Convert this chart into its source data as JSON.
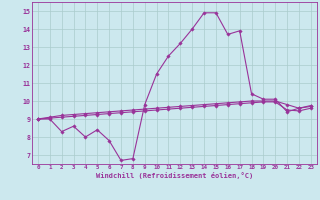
{
  "xlabel": "Windchill (Refroidissement éolien,°C)",
  "background_color": "#cce8ee",
  "grid_color": "#aacccc",
  "line_color": "#993399",
  "x_ticks": [
    0,
    1,
    2,
    3,
    4,
    5,
    6,
    7,
    8,
    9,
    10,
    11,
    12,
    13,
    14,
    15,
    16,
    17,
    18,
    19,
    20,
    21,
    22,
    23
  ],
  "ylim": [
    6.5,
    15.5
  ],
  "xlim": [
    -0.5,
    23.5
  ],
  "y_ticks": [
    7,
    8,
    9,
    10,
    11,
    12,
    13,
    14,
    15
  ],
  "line1_y": [
    9.0,
    9.0,
    8.3,
    8.6,
    8.0,
    8.4,
    7.8,
    6.7,
    6.8,
    9.8,
    11.5,
    12.5,
    13.2,
    14.0,
    14.9,
    14.9,
    13.7,
    13.9,
    10.4,
    10.1,
    10.1,
    9.4,
    9.6,
    9.7
  ],
  "line2_y": [
    9.0,
    9.05,
    9.1,
    9.15,
    9.2,
    9.25,
    9.3,
    9.35,
    9.4,
    9.45,
    9.5,
    9.55,
    9.6,
    9.65,
    9.7,
    9.75,
    9.8,
    9.85,
    9.9,
    9.95,
    9.95,
    9.5,
    9.45,
    9.6
  ],
  "line3_y": [
    9.0,
    9.1,
    9.2,
    9.25,
    9.3,
    9.35,
    9.4,
    9.45,
    9.5,
    9.55,
    9.6,
    9.65,
    9.7,
    9.75,
    9.8,
    9.85,
    9.9,
    9.95,
    10.0,
    10.0,
    10.0,
    9.8,
    9.6,
    9.75
  ]
}
